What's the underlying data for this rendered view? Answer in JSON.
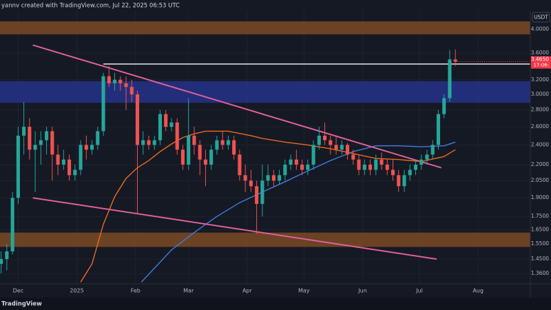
{
  "chart_data": {
    "type": "candlestick",
    "header": "yannv created with TradingView.com, Jul 22, 2025 06:53 UTC",
    "currency": "USDT",
    "watermark": "TradingView",
    "last_price_label": "3.4650",
    "countdown": "17:06:",
    "log_scale": true,
    "grid": true,
    "up_color": "#26a69a",
    "down_color": "#ef5350",
    "xlim": [
      -0.2,
      93.2
    ],
    "xticks": [
      {
        "value": 3,
        "label": "Dec"
      },
      {
        "value": 13.33,
        "label": "2025"
      },
      {
        "value": 23.67,
        "label": "Feb"
      },
      {
        "value": 33,
        "label": "Mar"
      },
      {
        "value": 43.33,
        "label": "Apr"
      },
      {
        "value": 53.33,
        "label": "May"
      },
      {
        "value": 63.67,
        "label": "Jun"
      },
      {
        "value": 73.67,
        "label": "Jul"
      },
      {
        "value": 84,
        "label": "Aug"
      }
    ],
    "ylim": [
      1.3,
      4.55
    ],
    "yticks": [
      {
        "value": 4,
        "label": "4.0000"
      },
      {
        "value": 3.6,
        "label": "3.6000"
      },
      {
        "value": 3.2,
        "label": "3.2000"
      },
      {
        "value": 3,
        "label": "3.0000"
      },
      {
        "value": 2.8,
        "label": "2.8000"
      },
      {
        "value": 2.6,
        "label": "2.6000"
      },
      {
        "value": 2.4,
        "label": "2.4000"
      },
      {
        "value": 2.2,
        "label": "2.2000"
      },
      {
        "value": 2.05,
        "label": "2.0500"
      },
      {
        "value": 1.9,
        "label": "1.9000"
      },
      {
        "value": 1.75,
        "label": "1.7500"
      },
      {
        "value": 1.65,
        "label": "1.6500"
      },
      {
        "value": 1.55,
        "label": "1.5500"
      },
      {
        "value": 1.45,
        "label": "1.4500"
      },
      {
        "value": 1.36,
        "label": "1.3600"
      }
    ],
    "zones": [
      {
        "color": "#7a4a24",
        "values": [
          3.91,
          4.14
        ]
      },
      {
        "color": "#26338a",
        "values": [
          2.89,
          3.18
        ]
      },
      {
        "color": "#7a4a24",
        "values": [
          1.53,
          1.63
        ]
      }
    ],
    "level": {
      "color": "#ffffff",
      "x_start": 18,
      "value": 3.43
    },
    "trendlines": [
      {
        "color": "#e0609a",
        "x": [
          5.58,
          77.5
        ],
        "values": [
          3.73,
          2.17
        ]
      },
      {
        "color": "#e0609a",
        "x": [
          5.58,
          76.7
        ],
        "values": [
          1.9,
          1.45
        ]
      }
    ],
    "moving_averages": [
      {
        "color": "#f0691e",
        "x": [
          14,
          16,
          18,
          20,
          22,
          24,
          26,
          28,
          30,
          32,
          34,
          36,
          40,
          44,
          46,
          50,
          54,
          58,
          62,
          66,
          70,
          74,
          78,
          80
        ],
        "values": [
          1.31,
          1.42,
          1.69,
          1.91,
          2.07,
          2.17,
          2.24,
          2.33,
          2.41,
          2.48,
          2.52,
          2.55,
          2.55,
          2.5,
          2.47,
          2.43,
          2.4,
          2.36,
          2.31,
          2.26,
          2.25,
          2.23,
          2.28,
          2.35
        ]
      },
      {
        "color": "#3d7ee0",
        "x": [
          24.7,
          30,
          34,
          38,
          42,
          46,
          50,
          54,
          58,
          62,
          66,
          70,
          74,
          78,
          80
        ],
        "values": [
          1.31,
          1.51,
          1.63,
          1.75,
          1.86,
          1.95,
          2.04,
          2.14,
          2.24,
          2.33,
          2.39,
          2.39,
          2.38,
          2.39,
          2.43
        ]
      }
    ],
    "ohlc": [
      [
        1.42,
        1.5,
        1.36,
        1.45
      ],
      [
        1.45,
        1.55,
        1.38,
        1.5
      ],
      [
        1.5,
        1.95,
        1.48,
        1.9
      ],
      [
        1.9,
        2.6,
        1.85,
        2.5
      ],
      [
        2.5,
        2.9,
        2.3,
        2.6
      ],
      [
        2.6,
        2.7,
        2.25,
        2.35
      ],
      [
        2.35,
        2.55,
        1.95,
        2.4
      ],
      [
        2.4,
        2.55,
        2.2,
        2.45
      ],
      [
        2.45,
        2.6,
        2.3,
        2.55
      ],
      [
        2.55,
        2.6,
        2.05,
        2.3
      ],
      [
        2.3,
        2.4,
        2.1,
        2.2
      ],
      [
        2.2,
        2.35,
        2.15,
        2.25
      ],
      [
        2.25,
        2.3,
        2.05,
        2.1
      ],
      [
        2.1,
        2.2,
        2.05,
        2.15
      ],
      [
        2.15,
        2.45,
        2.1,
        2.4
      ],
      [
        2.4,
        2.5,
        2.25,
        2.35
      ],
      [
        2.35,
        2.45,
        2.3,
        2.4
      ],
      [
        2.4,
        2.6,
        2.35,
        2.55
      ],
      [
        2.55,
        3.3,
        2.5,
        3.25
      ],
      [
        3.25,
        3.4,
        3.1,
        3.15
      ],
      [
        3.15,
        3.3,
        3.05,
        3.2
      ],
      [
        3.2,
        3.25,
        3.05,
        3.15
      ],
      [
        3.15,
        3.25,
        2.8,
        3.1
      ],
      [
        3.1,
        3.2,
        2.9,
        3.0
      ],
      [
        3.0,
        3.05,
        1.77,
        2.4
      ],
      [
        2.4,
        2.55,
        2.3,
        2.45
      ],
      [
        2.45,
        2.5,
        2.35,
        2.4
      ],
      [
        2.4,
        2.5,
        2.35,
        2.45
      ],
      [
        2.45,
        2.8,
        2.4,
        2.75
      ],
      [
        2.75,
        2.8,
        2.55,
        2.6
      ],
      [
        2.6,
        2.7,
        2.55,
        2.65
      ],
      [
        2.65,
        2.7,
        2.3,
        2.35
      ],
      [
        2.35,
        2.4,
        2.15,
        2.2
      ],
      [
        2.2,
        2.95,
        2.15,
        2.5
      ],
      [
        2.5,
        2.6,
        2.3,
        2.4
      ],
      [
        2.4,
        2.45,
        2.1,
        2.25
      ],
      [
        2.25,
        2.35,
        2.0,
        2.2
      ],
      [
        2.2,
        2.4,
        2.15,
        2.35
      ],
      [
        2.35,
        2.5,
        2.3,
        2.45
      ],
      [
        2.45,
        2.55,
        2.35,
        2.4
      ],
      [
        2.4,
        2.5,
        2.35,
        2.45
      ],
      [
        2.45,
        2.5,
        2.25,
        2.3
      ],
      [
        2.3,
        2.35,
        2.05,
        2.1
      ],
      [
        2.1,
        2.2,
        1.95,
        2.05
      ],
      [
        2.05,
        2.15,
        1.95,
        2.0
      ],
      [
        2.0,
        2.05,
        1.62,
        1.85
      ],
      [
        1.85,
        2.2,
        1.75,
        2.05
      ],
      [
        2.05,
        2.2,
        2.0,
        2.1
      ],
      [
        2.1,
        2.15,
        2.0,
        2.05
      ],
      [
        2.05,
        2.15,
        2.02,
        2.1
      ],
      [
        2.1,
        2.25,
        2.05,
        2.2
      ],
      [
        2.2,
        2.3,
        2.15,
        2.25
      ],
      [
        2.25,
        2.35,
        2.15,
        2.2
      ],
      [
        2.2,
        2.25,
        2.1,
        2.15
      ],
      [
        2.15,
        2.25,
        2.1,
        2.2
      ],
      [
        2.2,
        2.45,
        2.15,
        2.4
      ],
      [
        2.4,
        2.6,
        2.35,
        2.5
      ],
      [
        2.5,
        2.65,
        2.4,
        2.45
      ],
      [
        2.45,
        2.5,
        2.3,
        2.4
      ],
      [
        2.4,
        2.5,
        2.3,
        2.35
      ],
      [
        2.35,
        2.45,
        2.3,
        2.4
      ],
      [
        2.4,
        2.42,
        2.25,
        2.3
      ],
      [
        2.3,
        2.35,
        2.2,
        2.25
      ],
      [
        2.25,
        2.3,
        2.1,
        2.15
      ],
      [
        2.15,
        2.25,
        2.1,
        2.2
      ],
      [
        2.2,
        2.25,
        2.1,
        2.15
      ],
      [
        2.15,
        2.3,
        2.1,
        2.25
      ],
      [
        2.25,
        2.32,
        2.15,
        2.2
      ],
      [
        2.2,
        2.25,
        2.1,
        2.15
      ],
      [
        2.15,
        2.25,
        2.05,
        2.1
      ],
      [
        2.1,
        2.15,
        1.95,
        2.0
      ],
      [
        2.0,
        2.15,
        1.95,
        2.1
      ],
      [
        2.1,
        2.2,
        2.05,
        2.15
      ],
      [
        2.15,
        2.25,
        2.1,
        2.2
      ],
      [
        2.2,
        2.3,
        2.15,
        2.25
      ],
      [
        2.25,
        2.35,
        2.2,
        2.3
      ],
      [
        2.3,
        2.45,
        2.25,
        2.4
      ],
      [
        2.4,
        2.8,
        2.35,
        2.75
      ],
      [
        2.75,
        3.0,
        2.7,
        2.95
      ],
      [
        2.95,
        3.65,
        2.9,
        3.5
      ],
      [
        3.5,
        3.66,
        3.4,
        3.465
      ]
    ]
  }
}
